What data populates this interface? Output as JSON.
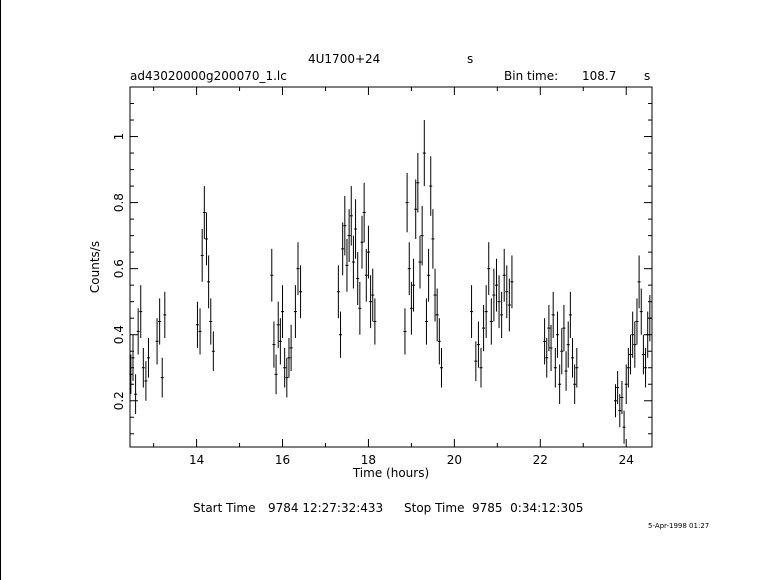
{
  "header": {
    "object": "4U1700+24",
    "object_unit": "s",
    "file": "ad43020000g200070_1.lc",
    "bin_label": "Bin time:",
    "bin_value": "108.7",
    "bin_unit": "s"
  },
  "footer": {
    "start_label": "Start Time",
    "start_value": "9784 12:27:32:433",
    "stop_label": "Stop Time",
    "stop_value": "9785  0:34:12:305",
    "date_stamp": "5-Apr-1998 01:27"
  },
  "chart_data": {
    "type": "scatter",
    "title": "4U1700+24",
    "xlabel": "Time (hours)",
    "ylabel": "Counts/s",
    "xlim": [
      12.45,
      24.6
    ],
    "ylim": [
      0.06,
      1.15
    ],
    "xticks": [
      14,
      16,
      18,
      20,
      22,
      24
    ],
    "yticks": [
      0.2,
      0.4,
      0.6,
      0.8,
      1
    ],
    "grid": false,
    "error_bars": true,
    "series": [
      {
        "points": [
          {
            "x": 12.47,
            "y": 0.28,
            "e": 0.06
          },
          {
            "x": 12.52,
            "y": 0.33,
            "e": 0.07
          },
          {
            "x": 12.58,
            "y": 0.22,
            "e": 0.06
          },
          {
            "x": 12.64,
            "y": 0.41,
            "e": 0.07
          },
          {
            "x": 12.7,
            "y": 0.47,
            "e": 0.08
          },
          {
            "x": 12.76,
            "y": 0.3,
            "e": 0.06
          },
          {
            "x": 12.82,
            "y": 0.26,
            "e": 0.06
          },
          {
            "x": 12.88,
            "y": 0.33,
            "e": 0.06
          },
          {
            "x": 13.08,
            "y": 0.38,
            "e": 0.07
          },
          {
            "x": 13.14,
            "y": 0.44,
            "e": 0.07
          },
          {
            "x": 13.2,
            "y": 0.27,
            "e": 0.06
          },
          {
            "x": 13.26,
            "y": 0.46,
            "e": 0.07
          },
          {
            "x": 14.02,
            "y": 0.43,
            "e": 0.07
          },
          {
            "x": 14.08,
            "y": 0.41,
            "e": 0.07
          },
          {
            "x": 14.13,
            "y": 0.64,
            "e": 0.08
          },
          {
            "x": 14.18,
            "y": 0.77,
            "e": 0.08
          },
          {
            "x": 14.23,
            "y": 0.69,
            "e": 0.08
          },
          {
            "x": 14.28,
            "y": 0.56,
            "e": 0.08
          },
          {
            "x": 14.33,
            "y": 0.44,
            "e": 0.07
          },
          {
            "x": 14.39,
            "y": 0.35,
            "e": 0.06
          },
          {
            "x": 15.75,
            "y": 0.58,
            "e": 0.08
          },
          {
            "x": 15.8,
            "y": 0.37,
            "e": 0.07
          },
          {
            "x": 15.85,
            "y": 0.28,
            "e": 0.06
          },
          {
            "x": 15.9,
            "y": 0.43,
            "e": 0.07
          },
          {
            "x": 15.95,
            "y": 0.38,
            "e": 0.07
          },
          {
            "x": 16.0,
            "y": 0.47,
            "e": 0.08
          },
          {
            "x": 16.05,
            "y": 0.3,
            "e": 0.06
          },
          {
            "x": 16.1,
            "y": 0.27,
            "e": 0.06
          },
          {
            "x": 16.15,
            "y": 0.33,
            "e": 0.06
          },
          {
            "x": 16.2,
            "y": 0.36,
            "e": 0.07
          },
          {
            "x": 16.3,
            "y": 0.47,
            "e": 0.08
          },
          {
            "x": 16.36,
            "y": 0.6,
            "e": 0.08
          },
          {
            "x": 16.42,
            "y": 0.53,
            "e": 0.08
          },
          {
            "x": 17.3,
            "y": 0.53,
            "e": 0.08
          },
          {
            "x": 17.35,
            "y": 0.4,
            "e": 0.07
          },
          {
            "x": 17.4,
            "y": 0.66,
            "e": 0.08
          },
          {
            "x": 17.45,
            "y": 0.73,
            "e": 0.09
          },
          {
            "x": 17.5,
            "y": 0.61,
            "e": 0.08
          },
          {
            "x": 17.55,
            "y": 0.7,
            "e": 0.08
          },
          {
            "x": 17.6,
            "y": 0.76,
            "e": 0.09
          },
          {
            "x": 17.65,
            "y": 0.62,
            "e": 0.08
          },
          {
            "x": 17.7,
            "y": 0.72,
            "e": 0.09
          },
          {
            "x": 17.75,
            "y": 0.57,
            "e": 0.08
          },
          {
            "x": 17.8,
            "y": 0.48,
            "e": 0.08
          },
          {
            "x": 17.85,
            "y": 0.68,
            "e": 0.08
          },
          {
            "x": 17.9,
            "y": 0.77,
            "e": 0.09
          },
          {
            "x": 17.95,
            "y": 0.58,
            "e": 0.08
          },
          {
            "x": 18.0,
            "y": 0.65,
            "e": 0.08
          },
          {
            "x": 18.05,
            "y": 0.5,
            "e": 0.08
          },
          {
            "x": 18.1,
            "y": 0.52,
            "e": 0.08
          },
          {
            "x": 18.15,
            "y": 0.44,
            "e": 0.07
          },
          {
            "x": 18.85,
            "y": 0.41,
            "e": 0.07
          },
          {
            "x": 18.9,
            "y": 0.8,
            "e": 0.09
          },
          {
            "x": 18.95,
            "y": 0.6,
            "e": 0.08
          },
          {
            "x": 19.0,
            "y": 0.48,
            "e": 0.08
          },
          {
            "x": 19.05,
            "y": 0.55,
            "e": 0.08
          },
          {
            "x": 19.1,
            "y": 0.78,
            "e": 0.09
          },
          {
            "x": 19.15,
            "y": 0.86,
            "e": 0.09
          },
          {
            "x": 19.2,
            "y": 0.62,
            "e": 0.08
          },
          {
            "x": 19.25,
            "y": 0.7,
            "e": 0.09
          },
          {
            "x": 19.3,
            "y": 0.95,
            "e": 0.1
          },
          {
            "x": 19.35,
            "y": 0.44,
            "e": 0.07
          },
          {
            "x": 19.4,
            "y": 0.58,
            "e": 0.08
          },
          {
            "x": 19.45,
            "y": 0.85,
            "e": 0.09
          },
          {
            "x": 19.5,
            "y": 0.69,
            "e": 0.09
          },
          {
            "x": 19.55,
            "y": 0.52,
            "e": 0.08
          },
          {
            "x": 19.6,
            "y": 0.46,
            "e": 0.08
          },
          {
            "x": 19.65,
            "y": 0.38,
            "e": 0.07
          },
          {
            "x": 19.7,
            "y": 0.3,
            "e": 0.06
          },
          {
            "x": 20.4,
            "y": 0.47,
            "e": 0.08
          },
          {
            "x": 20.5,
            "y": 0.32,
            "e": 0.06
          },
          {
            "x": 20.56,
            "y": 0.37,
            "e": 0.07
          },
          {
            "x": 20.62,
            "y": 0.3,
            "e": 0.06
          },
          {
            "x": 20.68,
            "y": 0.42,
            "e": 0.07
          },
          {
            "x": 20.74,
            "y": 0.47,
            "e": 0.08
          },
          {
            "x": 20.8,
            "y": 0.6,
            "e": 0.08
          },
          {
            "x": 20.86,
            "y": 0.44,
            "e": 0.07
          },
          {
            "x": 20.92,
            "y": 0.52,
            "e": 0.08
          },
          {
            "x": 20.98,
            "y": 0.55,
            "e": 0.08
          },
          {
            "x": 21.04,
            "y": 0.5,
            "e": 0.08
          },
          {
            "x": 21.1,
            "y": 0.46,
            "e": 0.07
          },
          {
            "x": 21.16,
            "y": 0.58,
            "e": 0.08
          },
          {
            "x": 21.22,
            "y": 0.53,
            "e": 0.08
          },
          {
            "x": 21.28,
            "y": 0.49,
            "e": 0.08
          },
          {
            "x": 21.34,
            "y": 0.56,
            "e": 0.08
          },
          {
            "x": 22.1,
            "y": 0.38,
            "e": 0.07
          },
          {
            "x": 22.15,
            "y": 0.33,
            "e": 0.06
          },
          {
            "x": 22.2,
            "y": 0.42,
            "e": 0.07
          },
          {
            "x": 22.25,
            "y": 0.36,
            "e": 0.07
          },
          {
            "x": 22.3,
            "y": 0.46,
            "e": 0.07
          },
          {
            "x": 22.35,
            "y": 0.3,
            "e": 0.06
          },
          {
            "x": 22.4,
            "y": 0.4,
            "e": 0.07
          },
          {
            "x": 22.45,
            "y": 0.25,
            "e": 0.06
          },
          {
            "x": 22.5,
            "y": 0.35,
            "e": 0.07
          },
          {
            "x": 22.55,
            "y": 0.42,
            "e": 0.07
          },
          {
            "x": 22.6,
            "y": 0.29,
            "e": 0.06
          },
          {
            "x": 22.65,
            "y": 0.37,
            "e": 0.07
          },
          {
            "x": 22.7,
            "y": 0.46,
            "e": 0.07
          },
          {
            "x": 22.75,
            "y": 0.33,
            "e": 0.06
          },
          {
            "x": 22.8,
            "y": 0.25,
            "e": 0.06
          },
          {
            "x": 22.85,
            "y": 0.3,
            "e": 0.06
          },
          {
            "x": 23.75,
            "y": 0.2,
            "e": 0.05
          },
          {
            "x": 23.8,
            "y": 0.24,
            "e": 0.05
          },
          {
            "x": 23.85,
            "y": 0.17,
            "e": 0.05
          },
          {
            "x": 23.9,
            "y": 0.21,
            "e": 0.05
          },
          {
            "x": 23.95,
            "y": 0.12,
            "e": 0.05
          },
          {
            "x": 24.0,
            "y": 0.25,
            "e": 0.06
          },
          {
            "x": 24.05,
            "y": 0.3,
            "e": 0.06
          },
          {
            "x": 24.1,
            "y": 0.34,
            "e": 0.06
          },
          {
            "x": 24.15,
            "y": 0.4,
            "e": 0.07
          },
          {
            "x": 24.2,
            "y": 0.37,
            "e": 0.07
          },
          {
            "x": 24.25,
            "y": 0.44,
            "e": 0.07
          },
          {
            "x": 24.3,
            "y": 0.56,
            "e": 0.08
          },
          {
            "x": 24.35,
            "y": 0.47,
            "e": 0.07
          },
          {
            "x": 24.4,
            "y": 0.34,
            "e": 0.06
          },
          {
            "x": 24.45,
            "y": 0.3,
            "e": 0.06
          },
          {
            "x": 24.5,
            "y": 0.4,
            "e": 0.07
          },
          {
            "x": 24.55,
            "y": 0.45,
            "e": 0.07
          }
        ]
      }
    ]
  }
}
